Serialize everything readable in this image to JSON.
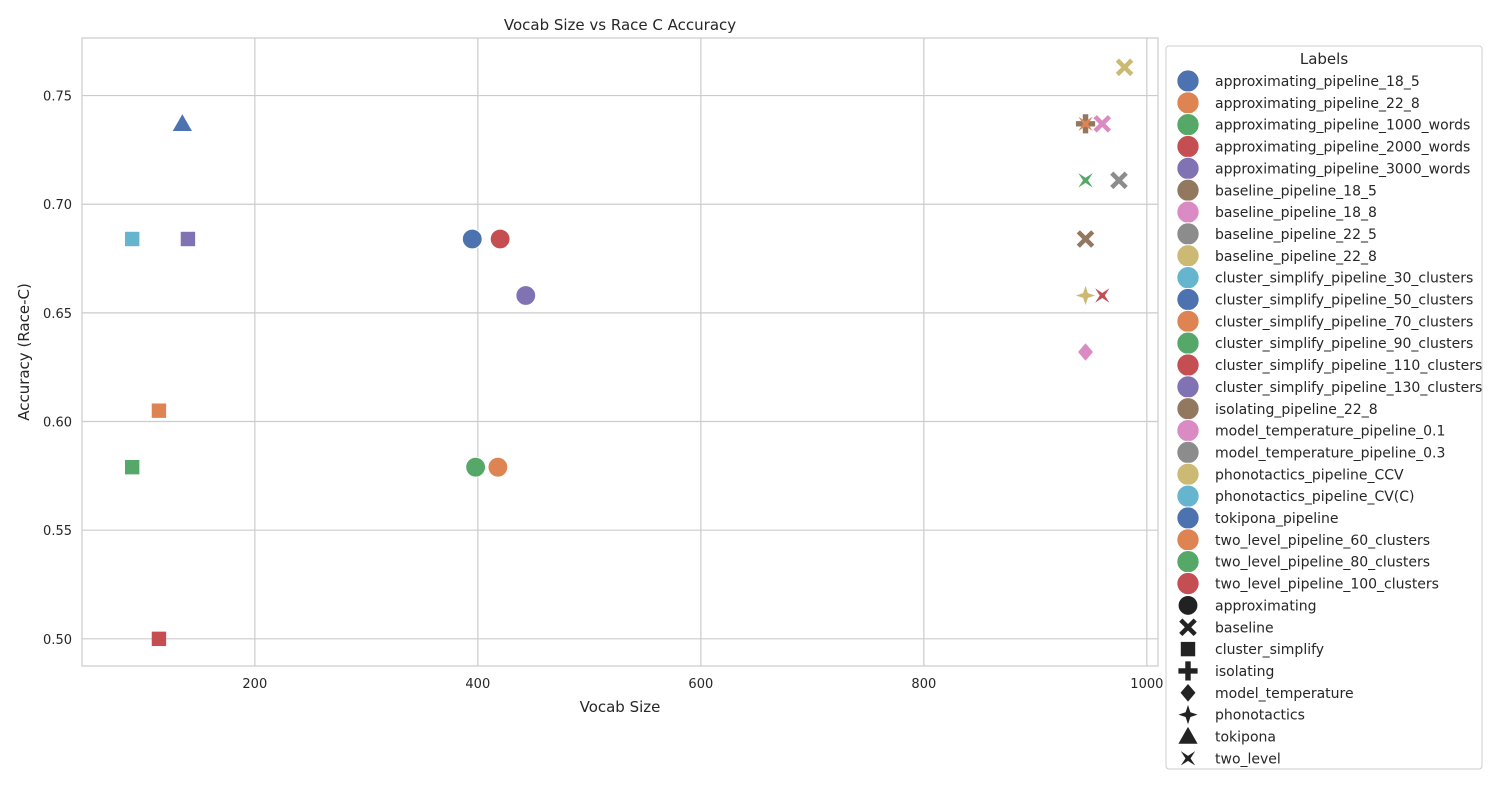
{
  "chart_data": {
    "type": "scatter",
    "title": "Vocab Size vs Race C Accuracy",
    "xlabel": "Vocab Size",
    "ylabel": "Accuracy (Race-C)",
    "xlim": [
      45,
      1010
    ],
    "ylim": [
      0.4875,
      0.7765
    ],
    "x_ticks": [
      200,
      400,
      600,
      800,
      1000
    ],
    "y_ticks": [
      0.5,
      0.55,
      0.6,
      0.65,
      0.7,
      0.75
    ],
    "grid": true,
    "legend": {
      "title": "Labels",
      "placement": "outside-right",
      "entries": [
        {
          "name": "approximating_pipeline_18_5",
          "color": "#4c72b0"
        },
        {
          "name": "approximating_pipeline_22_8",
          "color": "#dd8452"
        },
        {
          "name": "approximating_pipeline_1000_words",
          "color": "#55a868"
        },
        {
          "name": "approximating_pipeline_2000_words",
          "color": "#c44e52"
        },
        {
          "name": "approximating_pipeline_3000_words",
          "color": "#8172b3"
        },
        {
          "name": "baseline_pipeline_18_5",
          "color": "#937860"
        },
        {
          "name": "baseline_pipeline_18_8",
          "color": "#da8bc3"
        },
        {
          "name": "baseline_pipeline_22_5",
          "color": "#8c8c8c"
        },
        {
          "name": "baseline_pipeline_22_8",
          "color": "#ccb974"
        },
        {
          "name": "cluster_simplify_pipeline_30_clusters",
          "color": "#64b5cd"
        },
        {
          "name": "cluster_simplify_pipeline_50_clusters",
          "color": "#4c72b0"
        },
        {
          "name": "cluster_simplify_pipeline_70_clusters",
          "color": "#dd8452"
        },
        {
          "name": "cluster_simplify_pipeline_90_clusters",
          "color": "#55a868"
        },
        {
          "name": "cluster_simplify_pipeline_110_clusters",
          "color": "#c44e52"
        },
        {
          "name": "cluster_simplify_pipeline_130_clusters",
          "color": "#8172b3"
        },
        {
          "name": "isolating_pipeline_22_8",
          "color": "#937860"
        },
        {
          "name": "model_temperature_pipeline_0.1",
          "color": "#da8bc3"
        },
        {
          "name": "model_temperature_pipeline_0.3",
          "color": "#8c8c8c"
        },
        {
          "name": "phonotactics_pipeline_CCV",
          "color": "#ccb974"
        },
        {
          "name": "phonotactics_pipeline_CV(C)",
          "color": "#64b5cd"
        },
        {
          "name": "tokipona_pipeline",
          "color": "#4c72b0"
        },
        {
          "name": "two_level_pipeline_60_clusters",
          "color": "#dd8452"
        },
        {
          "name": "two_level_pipeline_80_clusters",
          "color": "#55a868"
        },
        {
          "name": "two_level_pipeline_100_clusters",
          "color": "#c44e52"
        }
      ],
      "style_entries": [
        {
          "name": "approximating",
          "marker": "circle"
        },
        {
          "name": "baseline",
          "marker": "x"
        },
        {
          "name": "cluster_simplify",
          "marker": "square"
        },
        {
          "name": "isolating",
          "marker": "plus"
        },
        {
          "name": "model_temperature",
          "marker": "diamond"
        },
        {
          "name": "phonotactics",
          "marker": "star4"
        },
        {
          "name": "tokipona",
          "marker": "triangle"
        },
        {
          "name": "two_level",
          "marker": "bowtie"
        }
      ]
    },
    "points": [
      {
        "label": "approximating_pipeline_18_5",
        "style": "circle",
        "x": 395,
        "y": 0.684
      },
      {
        "label": "approximating_pipeline_22_8",
        "style": "circle",
        "x": 418,
        "y": 0.579
      },
      {
        "label": "approximating_pipeline_1000_words",
        "style": "circle",
        "x": 398,
        "y": 0.579
      },
      {
        "label": "approximating_pipeline_2000_words",
        "style": "circle",
        "x": 420,
        "y": 0.684
      },
      {
        "label": "approximating_pipeline_3000_words",
        "style": "circle",
        "x": 443,
        "y": 0.658
      },
      {
        "label": "baseline_pipeline_18_5",
        "style": "x",
        "x": 945,
        "y": 0.684
      },
      {
        "label": "baseline_pipeline_18_8",
        "style": "x",
        "x": 960,
        "y": 0.737
      },
      {
        "label": "baseline_pipeline_22_5",
        "style": "x",
        "x": 975,
        "y": 0.711
      },
      {
        "label": "baseline_pipeline_22_8",
        "style": "x",
        "x": 980,
        "y": 0.763
      },
      {
        "label": "cluster_simplify_pipeline_30_clusters",
        "style": "square",
        "x": 90,
        "y": 0.684
      },
      {
        "label": "cluster_simplify_pipeline_70_clusters",
        "style": "square",
        "x": 114,
        "y": 0.605
      },
      {
        "label": "cluster_simplify_pipeline_90_clusters",
        "style": "square",
        "x": 90,
        "y": 0.579
      },
      {
        "label": "cluster_simplify_pipeline_110_clusters",
        "style": "square",
        "x": 114,
        "y": 0.5
      },
      {
        "label": "cluster_simplify_pipeline_130_clusters",
        "style": "square",
        "x": 140,
        "y": 0.684
      },
      {
        "label": "isolating_pipeline_22_8",
        "style": "plus",
        "x": 945,
        "y": 0.737
      },
      {
        "label": "model_temperature_pipeline_0.1",
        "style": "diamond",
        "x": 945,
        "y": 0.632
      },
      {
        "label": "phonotactics_pipeline_CCV",
        "style": "star4",
        "x": 945,
        "y": 0.658
      },
      {
        "label": "tokipona_pipeline",
        "style": "triangle",
        "x": 135,
        "y": 0.737
      },
      {
        "label": "two_level_pipeline_60_clusters",
        "style": "bowtie",
        "x": 945,
        "y": 0.737
      },
      {
        "label": "two_level_pipeline_80_clusters",
        "style": "bowtie",
        "x": 945,
        "y": 0.711
      },
      {
        "label": "two_level_pipeline_100_clusters",
        "style": "bowtie",
        "x": 960,
        "y": 0.658
      }
    ]
  }
}
